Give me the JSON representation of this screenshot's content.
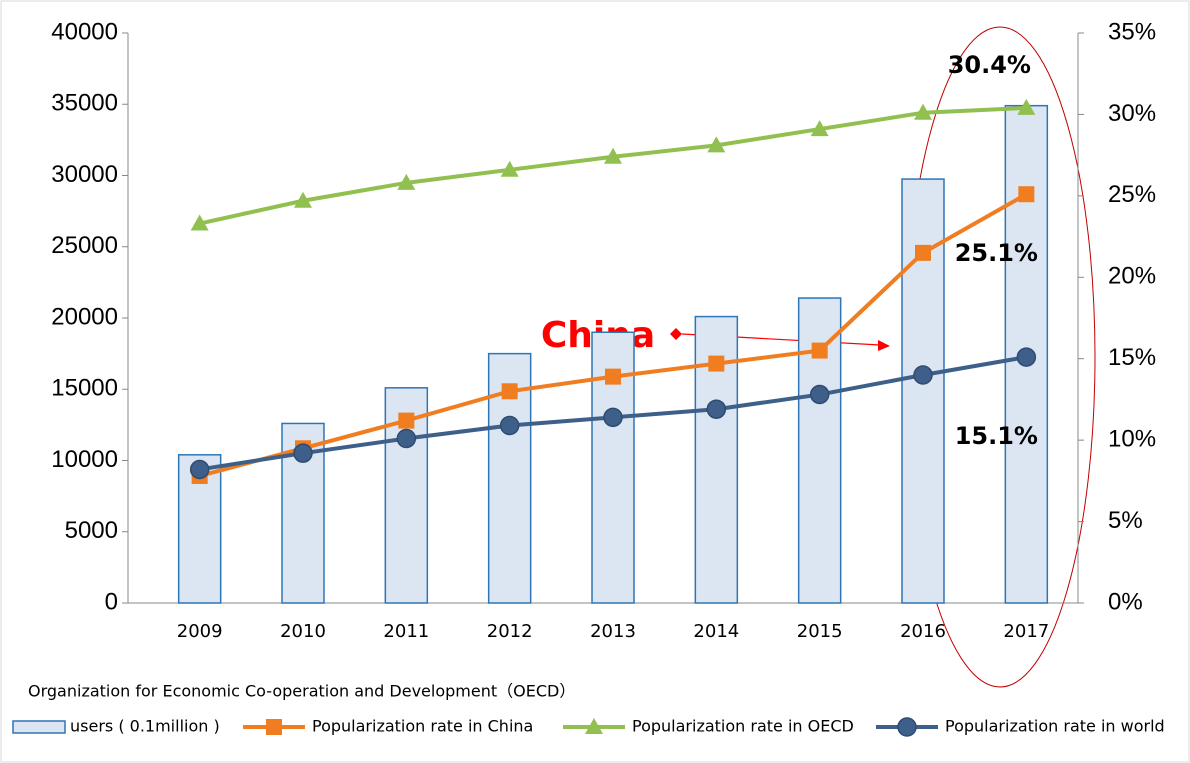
{
  "chart_data": {
    "type": "bar",
    "categories": [
      "2009",
      "2010",
      "2011",
      "2012",
      "2013",
      "2014",
      "2015",
      "2016",
      "2017"
    ],
    "series": [
      {
        "name": "users ( 0.1million )",
        "type": "bar",
        "axis": "y",
        "color": "#dce6f2",
        "stroke": "#2e75b6",
        "values": [
          10400,
          12600,
          15100,
          17500,
          19000,
          20100,
          21400,
          29750,
          34900
        ]
      },
      {
        "name": "Popularization rate in China",
        "type": "line",
        "axis": "y2",
        "color": "#f07d20",
        "marker": "square",
        "values": [
          7.8,
          9.5,
          11.2,
          13.0,
          13.9,
          14.7,
          15.5,
          21.5,
          25.1
        ],
        "value_labels": [
          null,
          null,
          null,
          null,
          null,
          null,
          null,
          null,
          "25.1%"
        ]
      },
      {
        "name": "Popularization rate in OECD",
        "type": "line",
        "axis": "y2",
        "color": "#92c050",
        "marker": "triangle",
        "values": [
          23.3,
          24.7,
          25.8,
          26.6,
          27.4,
          28.1,
          29.1,
          30.1,
          30.4
        ],
        "value_labels": [
          null,
          null,
          null,
          null,
          null,
          null,
          null,
          null,
          "30.4%"
        ]
      },
      {
        "name": "Popularization rate in world",
        "type": "line",
        "axis": "y2",
        "color": "#3e5f8a",
        "marker": "circle",
        "values": [
          8.2,
          9.2,
          10.1,
          10.9,
          11.4,
          11.9,
          12.8,
          14.0,
          15.1
        ],
        "value_labels": [
          null,
          null,
          null,
          null,
          null,
          null,
          null,
          null,
          "15.1%"
        ]
      }
    ],
    "ylim": [
      0,
      40000
    ],
    "yticks": [
      0,
      5000,
      10000,
      15000,
      20000,
      25000,
      30000,
      35000,
      40000
    ],
    "y2lim": [
      0,
      35
    ],
    "y2ticks": [
      {
        "value": 0,
        "label": "0%"
      },
      {
        "value": 5,
        "label": "5%"
      },
      {
        "value": 10,
        "label": "10%"
      },
      {
        "value": 15,
        "label": "15%"
      },
      {
        "value": 20,
        "label": "20%"
      },
      {
        "value": 25,
        "label": "25%"
      },
      {
        "value": 30,
        "label": "30%"
      },
      {
        "value": 35,
        "label": "35%"
      }
    ],
    "annotation": "China",
    "note": "Organization for Economic Co-operation and Development（OECD）",
    "legend": "bottom"
  }
}
